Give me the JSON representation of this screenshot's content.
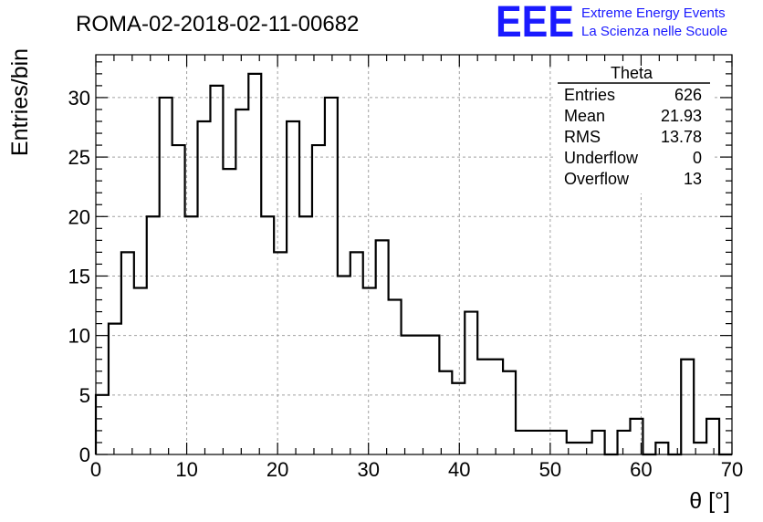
{
  "header": {
    "run_title": "ROMA-02-2018-02-11-00682",
    "logo_text": "EEE",
    "logo_line1": "Extreme Energy Events",
    "logo_line2": "La Scienza nelle Scuole"
  },
  "stats": {
    "title": "Theta",
    "rows": [
      {
        "label": "Entries",
        "value": "626"
      },
      {
        "label": "Mean",
        "value": "21.93"
      },
      {
        "label": "RMS",
        "value": "13.78"
      },
      {
        "label": "Underflow",
        "value": "0"
      },
      {
        "label": "Overflow",
        "value": "13"
      }
    ]
  },
  "colors": {
    "logo": "#1a1aff",
    "line": "#000000",
    "grid": "#a0a0a0"
  },
  "chart_data": {
    "type": "histogram",
    "xlabel": "θ [°]",
    "ylabel": "Entries/bin",
    "xlim": [
      0,
      70
    ],
    "ylim": [
      0,
      33.6
    ],
    "xticks": [
      0,
      10,
      20,
      30,
      40,
      50,
      60,
      70
    ],
    "yticks": [
      0,
      5,
      10,
      15,
      20,
      25,
      30
    ],
    "grid": true,
    "bin_width": 1.4,
    "bin_start": 0,
    "values": [
      5,
      11,
      17,
      14,
      20,
      30,
      26,
      20,
      28,
      31,
      24,
      29,
      32,
      20,
      17,
      28,
      20,
      26,
      30,
      15,
      17,
      14,
      18,
      13,
      10,
      10,
      10,
      7,
      6,
      12,
      8,
      8,
      7,
      2,
      2,
      2,
      2,
      1,
      1,
      2,
      0,
      2,
      3,
      0,
      1,
      0,
      8,
      1,
      3,
      0
    ]
  }
}
